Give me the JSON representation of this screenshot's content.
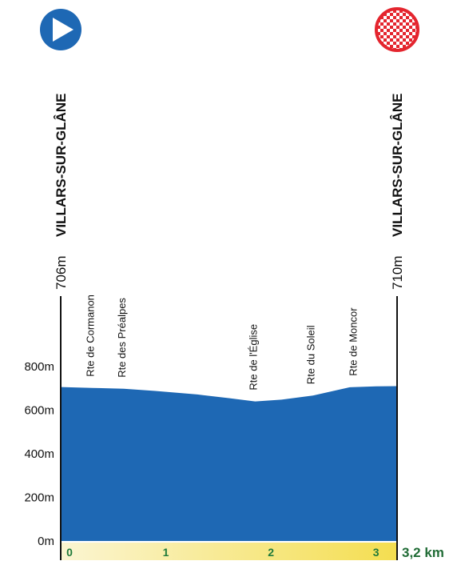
{
  "chart_data": {
    "type": "area",
    "title": "",
    "xlabel": "",
    "ylabel": "",
    "xlim": [
      0,
      3.2
    ],
    "ylim": [
      0,
      800
    ],
    "y_ticks": [
      {
        "value": 0,
        "label": "0m"
      },
      {
        "value": 200,
        "label": "200m"
      },
      {
        "value": 400,
        "label": "400m"
      },
      {
        "value": 600,
        "label": "600m"
      },
      {
        "value": 800,
        "label": "800m"
      }
    ],
    "x_ticks": [
      {
        "value": 0,
        "label": "0"
      },
      {
        "value": 1,
        "label": "1"
      },
      {
        "value": 2,
        "label": "2"
      },
      {
        "value": 3,
        "label": "3"
      }
    ],
    "total_distance": {
      "value": 3.2,
      "label": "3,2 km"
    },
    "fill_color": "#1e68b4",
    "distance_bar_colors": [
      "#fbf5d2",
      "#f4de50"
    ],
    "series": [
      {
        "x": [
          0,
          0.3,
          0.6,
          0.9,
          1.3,
          1.6,
          1.85,
          2.1,
          2.4,
          2.75,
          3.0,
          3.2
        ],
        "y": [
          706,
          702,
          698,
          688,
          672,
          655,
          640,
          648,
          667,
          705,
          709,
          710
        ]
      }
    ],
    "start": {
      "place": "VILLARS-SUR-GLÂNE",
      "altitude": "706m",
      "icon": "play-arrow-icon",
      "color": "#1e68b4"
    },
    "finish": {
      "place": "VILLARS-SUR-GLÂNE",
      "altitude": "710m",
      "icon": "checkered-flag-icon",
      "color": "#e4252e"
    },
    "annotations": [
      {
        "text": "Rte de Cormanon",
        "x": 0.3
      },
      {
        "text": "Rte des Préalpes",
        "x": 0.6
      },
      {
        "text": "Rte de l'Église",
        "x": 1.85
      },
      {
        "text": "Rte du Soleil",
        "x": 2.4
      },
      {
        "text": "Rte de Moncor",
        "x": 2.8
      }
    ]
  }
}
